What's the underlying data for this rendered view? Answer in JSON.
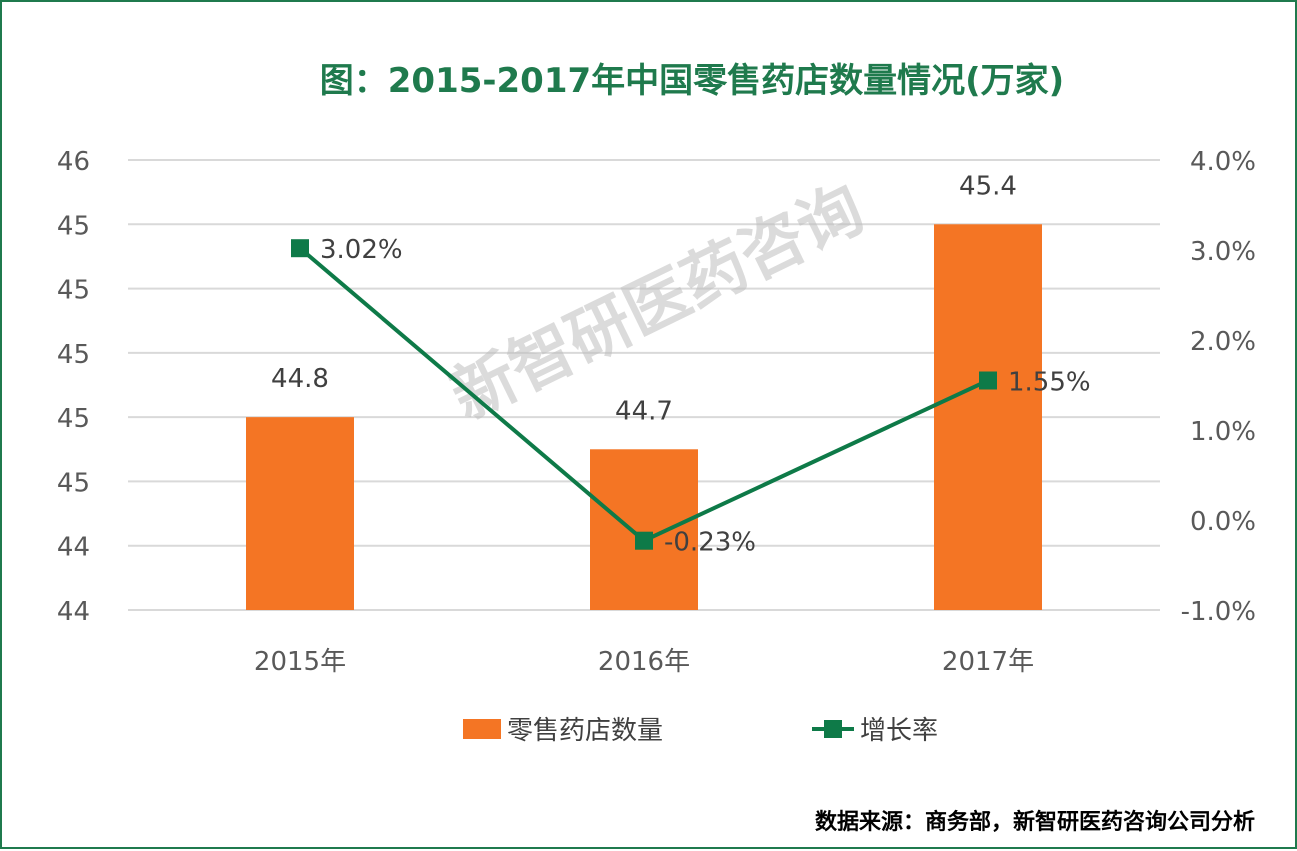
{
  "title": "图：2015-2017年中国零售药店数量情况(万家)",
  "source": "数据来源：商务部，新智研医药咨询公司分析",
  "watermark": "新智研医药咨询",
  "colors": {
    "bar": "#f47524",
    "line": "#0e7a48",
    "title": "#1f7a4d",
    "grid": "#d9d9d9",
    "border": "#1f7a4d"
  },
  "chart_data": {
    "type": "bar+line",
    "categories": [
      "2015年",
      "2016年",
      "2017年"
    ],
    "series": [
      {
        "name": "零售药店数量",
        "type": "bar",
        "axis": "left",
        "values": [
          44.8,
          44.7,
          45.4
        ],
        "labels": [
          "44.8",
          "44.7",
          "45.4"
        ]
      },
      {
        "name": "增长率",
        "type": "line",
        "axis": "right",
        "values": [
          3.02,
          -0.23,
          1.55
        ],
        "labels": [
          "3.02%",
          "-0.23%",
          "1.55%"
        ]
      }
    ],
    "left_axis": {
      "min": 44.2,
      "max": 45.6,
      "ticks": [
        44.2,
        44.4,
        44.6,
        44.8,
        45.0,
        45.2,
        45.4,
        45.6
      ],
      "tick_labels": [
        "44",
        "44",
        "45",
        "45",
        "45",
        "45",
        "45",
        "46"
      ]
    },
    "right_axis": {
      "min": -1.0,
      "max": 4.0,
      "ticks": [
        -1.0,
        0.0,
        1.0,
        2.0,
        3.0,
        4.0
      ],
      "tick_labels": [
        "-1.0%",
        "0.0%",
        "1.0%",
        "2.0%",
        "3.0%",
        "4.0%"
      ]
    },
    "grid": true,
    "legend_position": "bottom"
  }
}
